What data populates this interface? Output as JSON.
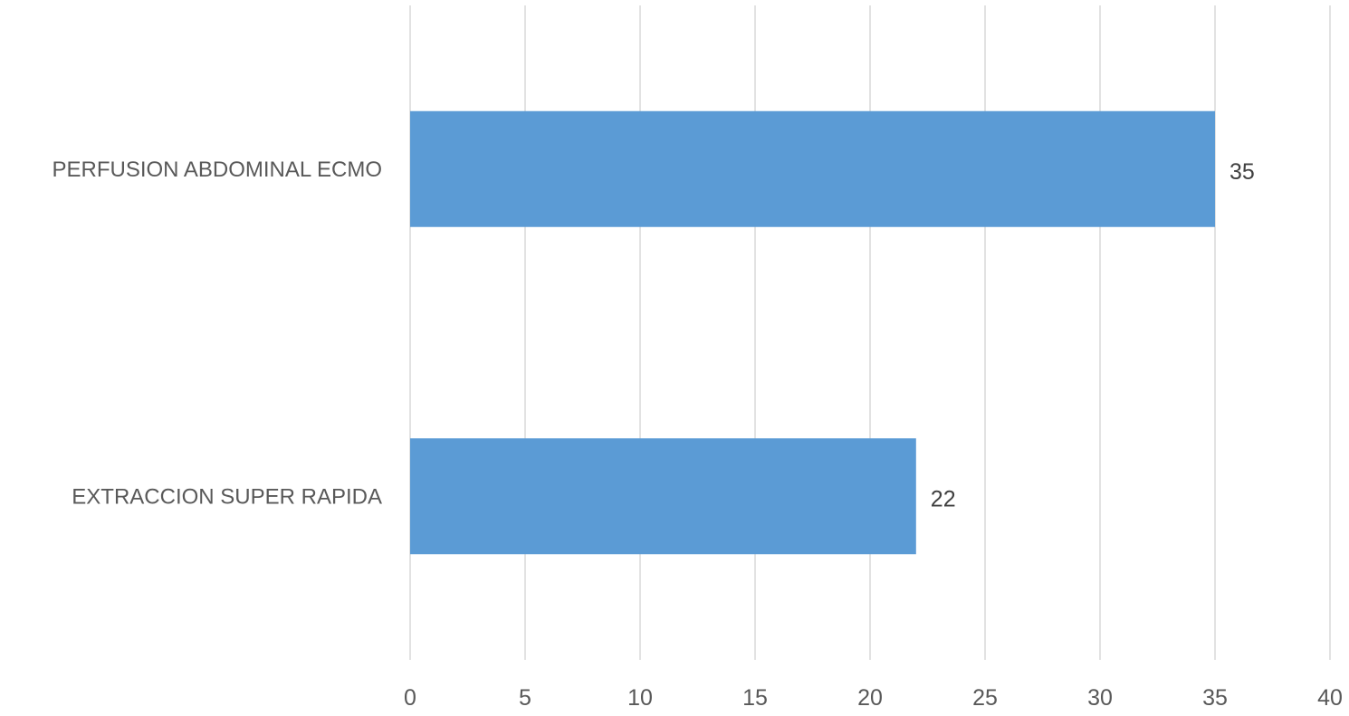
{
  "chart_data": {
    "type": "bar",
    "orientation": "horizontal",
    "title": "",
    "xlabel": "",
    "ylabel": "",
    "categories": [
      "PERFUSION ABDOMINAL ECMO",
      "EXTRACCION SUPER RAPIDA"
    ],
    "values": [
      35,
      22
    ],
    "data_labels": [
      "35",
      "22"
    ],
    "xlim": [
      0,
      40
    ],
    "x_ticks": [
      0,
      5,
      10,
      15,
      20,
      25,
      30,
      35,
      40
    ],
    "x_tick_labels": [
      "0",
      "5",
      "10",
      "15",
      "20",
      "25",
      "30",
      "35",
      "40"
    ],
    "grid": "vertical",
    "legend": "none",
    "bar_color": "#5b9bd5",
    "grid_color": "#d9d9d9"
  }
}
